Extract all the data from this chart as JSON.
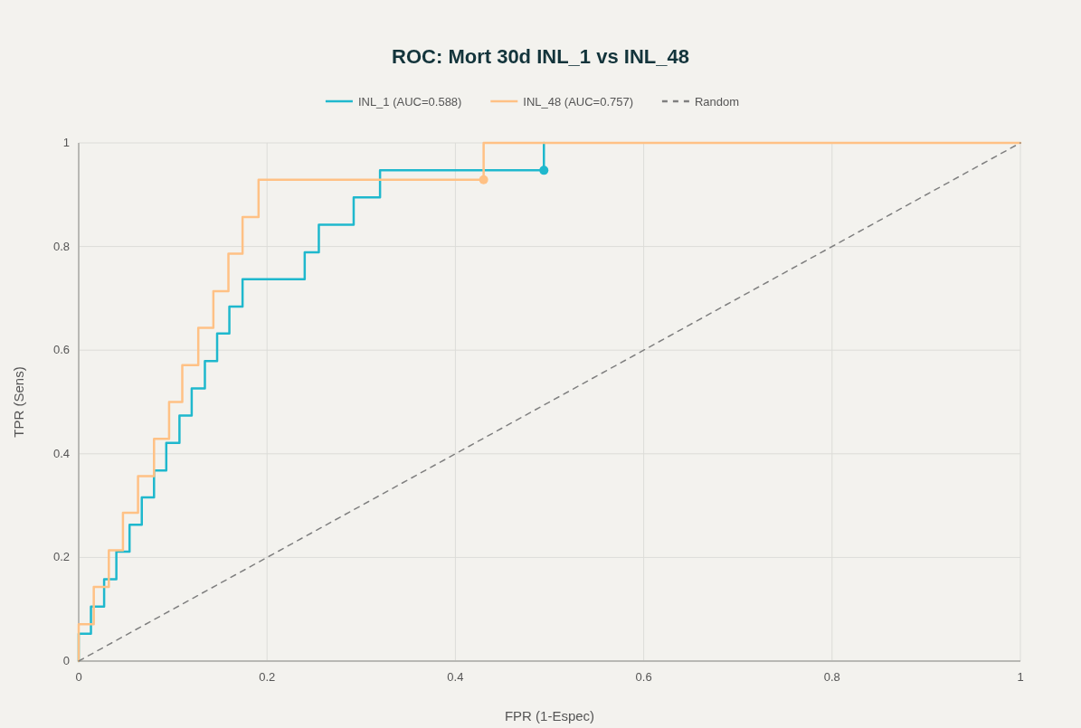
{
  "chart_data": {
    "type": "step",
    "title": "ROC: Mort 30d INL_1 vs INL_48",
    "xlabel": "FPR (1-Espec)",
    "ylabel": "TPR (Sens)",
    "series": [
      {
        "name": "INL_1 (AUC=0.588)",
        "color": "#1fb8cd",
        "x": [
          0,
          0,
          0.013,
          0.027,
          0.04,
          0.054,
          0.067,
          0.08,
          0.093,
          0.107,
          0.12,
          0.134,
          0.147,
          0.16,
          0.174,
          0.24,
          0.255,
          0.292,
          0.32,
          0.494
        ],
        "values": [
          0,
          0.053,
          0.105,
          0.158,
          0.211,
          0.263,
          0.316,
          0.368,
          0.421,
          0.474,
          0.526,
          0.579,
          0.632,
          0.684,
          0.737,
          0.789,
          0.842,
          0.895,
          0.947,
          1
        ]
      },
      {
        "name": "INL_48 (AUC=0.757)",
        "color": "#ffc185",
        "x": [
          0,
          0,
          0.016,
          0.032,
          0.047,
          0.063,
          0.08,
          0.096,
          0.11,
          0.127,
          0.143,
          0.159,
          0.174,
          0.191,
          0.43,
          1
        ],
        "values": [
          0,
          0.071,
          0.143,
          0.214,
          0.286,
          0.357,
          0.429,
          0.5,
          0.571,
          0.643,
          0.714,
          0.786,
          0.857,
          0.929,
          1,
          1
        ]
      },
      {
        "name": "Random",
        "type": "line",
        "line_style": "dashed",
        "color": "#7f7f7f",
        "x": [
          0,
          1
        ],
        "values": [
          0,
          1
        ]
      },
      {
        "type": "scatter",
        "marker": "circle",
        "color": "#1fb8cd",
        "x": [
          0.494
        ],
        "values": [
          0.947
        ]
      },
      {
        "type": "scatter",
        "marker": "circle",
        "color": "#ffc185",
        "x": [
          0.43
        ],
        "values": [
          0.929
        ]
      }
    ],
    "xlim": [
      0,
      1
    ],
    "xticks": [
      0,
      0.2,
      0.4,
      0.6,
      0.8,
      1
    ],
    "ylim": [
      0,
      1
    ],
    "yticks": [
      0,
      0.2,
      0.4,
      0.6,
      0.8,
      1
    ],
    "grid": true,
    "legend": "top"
  }
}
